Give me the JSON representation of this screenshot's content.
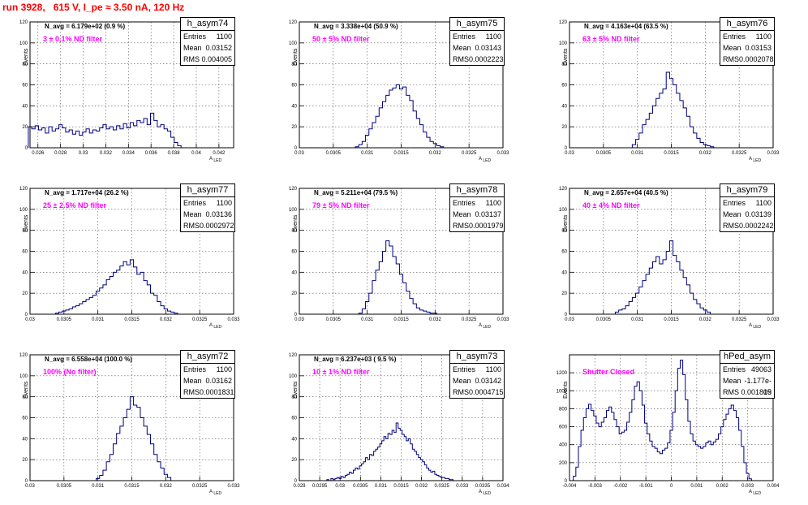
{
  "run_title": "run 3928,   615 V, I_pe ≈ 3.50 nA, 120 Hz",
  "colors": {
    "title": "#ff0000",
    "note": "#ff00ff",
    "hist": "#000080",
    "grid": "#555555"
  },
  "axis_y_label": "Events",
  "axis_x_label": "A",
  "axis_x_label_sub": "LED",
  "stat_labels": {
    "entries": "Entries",
    "mean": "Mean",
    "rms": "RMS"
  },
  "panels": [
    {
      "name": "h_asym74",
      "n_avg": "N_avg = 6.179e+02 (0.9 %)",
      "note": "3 ± 0.1% ND filter",
      "entries": "1100",
      "mean": "0.03152",
      "rms": "0.004005"
    },
    {
      "name": "h_asym75",
      "n_avg": "N_avg = 3.338e+04 (50.9 %)",
      "note": "50 ± 5% ND filter",
      "entries": "1100",
      "mean": "0.03143",
      "rms": "0.0002223"
    },
    {
      "name": "h_asym76",
      "n_avg": "N_avg = 4.163e+04 (63.5 %)",
      "note": "63 ± 5% ND filter",
      "entries": "1100",
      "mean": "0.03153",
      "rms": "0.0002078"
    },
    {
      "name": "h_asym77",
      "n_avg": "N_avg = 1.717e+04 (26.2 %)",
      "note": "25 ± 2.5% ND filter",
      "entries": "1100",
      "mean": "0.03136",
      "rms": "0.0002972"
    },
    {
      "name": "h_asym78",
      "n_avg": "N_avg = 5.211e+04 (79.5 %)",
      "note": "79 ± 5% ND filter",
      "entries": "1100",
      "mean": "0.03137",
      "rms": "0.0001979"
    },
    {
      "name": "h_asym79",
      "n_avg": "N_avg = 2.657e+04 (40.5 %)",
      "note": "40 ± 4% ND filter",
      "entries": "1100",
      "mean": "0.03139",
      "rms": "0.0002242"
    },
    {
      "name": "h_asym72",
      "n_avg": "N_avg = 6.558e+04 (100.0 %)",
      "note": "100% (No filter)",
      "entries": "1100",
      "mean": "0.03162",
      "rms": "0.0001831"
    },
    {
      "name": "h_asym73",
      "n_avg": "N_avg = 6.237e+03 ( 9.5 %)",
      "note": "10 ± 1% ND filter",
      "entries": "1100",
      "mean": "0.03142",
      "rms": "0.0004715"
    },
    {
      "name": "hPed_asym",
      "n_avg": "",
      "note": "Shutter Closed",
      "entries": "49063",
      "mean": "-1.177e-05",
      "rms": "0.001819"
    }
  ],
  "chart_data": [
    {
      "type": "histogram",
      "title": "h_asym74",
      "ylim": [
        0,
        120
      ],
      "xlim": [
        0.0253,
        0.0433
      ],
      "yticks": [
        0,
        20,
        40,
        60,
        80,
        100,
        120
      ],
      "xticks": [
        "0.026",
        "0.028",
        "0.03",
        "0.032",
        "0.034",
        "0.036",
        "0.038",
        "0.04",
        "0.042"
      ],
      "xtick_values": [
        0.026,
        0.028,
        0.03,
        0.032,
        0.034,
        0.036,
        0.038,
        0.04,
        0.042
      ],
      "x": [
        0.0253,
        0.0256,
        0.0259,
        0.0262,
        0.0265,
        0.0268,
        0.0271,
        0.0274,
        0.0277,
        0.028,
        0.0283,
        0.0286,
        0.0289,
        0.0292,
        0.0295,
        0.0298,
        0.0301,
        0.0304,
        0.0307,
        0.031,
        0.0313,
        0.0316,
        0.0319,
        0.0322,
        0.0325,
        0.0328,
        0.0331,
        0.0334,
        0.0337,
        0.034,
        0.0343,
        0.0346,
        0.0349,
        0.0352,
        0.0355,
        0.0358,
        0.0361,
        0.0364,
        0.0367,
        0.037,
        0.0373,
        0.0376,
        0.0379,
        0.0382,
        0.0385,
        0.0388
      ],
      "values": [
        20,
        18,
        21,
        17,
        19,
        14,
        20,
        16,
        18,
        22,
        19,
        15,
        17,
        13,
        16,
        12,
        15,
        18,
        14,
        17,
        16,
        19,
        22,
        18,
        20,
        17,
        21,
        18,
        23,
        19,
        24,
        21,
        26,
        24,
        28,
        22,
        33,
        26,
        20,
        22,
        18,
        16,
        10,
        5,
        2,
        0
      ]
    },
    {
      "type": "histogram",
      "title": "h_asym75",
      "ylim": [
        0,
        120
      ],
      "xlim": [
        0.03,
        0.033
      ],
      "yticks": [
        0,
        20,
        40,
        60,
        80,
        100,
        120
      ],
      "xticks": [
        "0.03",
        "0.0305",
        "0.031",
        "0.0315",
        "0.032",
        "0.0325",
        "0.033"
      ],
      "xtick_values": [
        0.03,
        0.0305,
        0.031,
        0.0315,
        0.032,
        0.0325,
        0.033
      ],
      "x": [
        0.03085,
        0.0309,
        0.03095,
        0.031,
        0.03105,
        0.0311,
        0.03115,
        0.0312,
        0.03125,
        0.0313,
        0.03135,
        0.0314,
        0.03145,
        0.0315,
        0.03155,
        0.0316,
        0.03165,
        0.0317,
        0.03175,
        0.0318,
        0.03185,
        0.0319,
        0.03195,
        0.032,
        0.03205,
        0.0321,
        0.03215
      ],
      "values": [
        1,
        3,
        6,
        12,
        18,
        24,
        30,
        38,
        44,
        50,
        55,
        57,
        60,
        56,
        58,
        50,
        45,
        35,
        28,
        22,
        15,
        10,
        6,
        4,
        2,
        1,
        0
      ]
    },
    {
      "type": "histogram",
      "title": "h_asym76",
      "ylim": [
        0,
        120
      ],
      "xlim": [
        0.03,
        0.033
      ],
      "yticks": [
        0,
        20,
        40,
        60,
        80,
        100,
        120
      ],
      "xticks": [
        "0.03",
        "0.0305",
        "0.031",
        "0.0315",
        "0.032",
        "0.0325",
        "0.033"
      ],
      "xtick_values": [
        0.03,
        0.0305,
        0.031,
        0.0315,
        0.032,
        0.0325,
        0.033
      ],
      "x": [
        0.03095,
        0.031,
        0.03105,
        0.0311,
        0.03115,
        0.0312,
        0.03125,
        0.0313,
        0.03135,
        0.0314,
        0.03145,
        0.0315,
        0.03155,
        0.0316,
        0.03165,
        0.0317,
        0.03175,
        0.0318,
        0.03185,
        0.0319,
        0.03195,
        0.032,
        0.03205,
        0.0321,
        0.03215
      ],
      "values": [
        3,
        8,
        14,
        22,
        27,
        33,
        40,
        47,
        52,
        56,
        72,
        66,
        60,
        52,
        45,
        38,
        30,
        20,
        14,
        9,
        5,
        3,
        2,
        1,
        0
      ]
    },
    {
      "type": "histogram",
      "title": "h_asym77",
      "ylim": [
        0,
        120
      ],
      "xlim": [
        0.03,
        0.033
      ],
      "yticks": [
        0,
        20,
        40,
        60,
        80,
        100,
        120
      ],
      "xticks": [
        "0.03",
        "0.0305",
        "0.031",
        "0.0315",
        "0.032",
        "0.0325",
        "0.033"
      ],
      "xtick_values": [
        0.03,
        0.0305,
        0.031,
        0.0315,
        0.032,
        0.0325,
        0.033
      ],
      "x": [
        0.0304,
        0.03045,
        0.0305,
        0.03055,
        0.0306,
        0.03065,
        0.0307,
        0.03075,
        0.0308,
        0.03085,
        0.0309,
        0.03095,
        0.031,
        0.03105,
        0.0311,
        0.03115,
        0.0312,
        0.03125,
        0.0313,
        0.03135,
        0.0314,
        0.03145,
        0.0315,
        0.03155,
        0.0316,
        0.03165,
        0.0317,
        0.03175,
        0.0318,
        0.03185,
        0.0319,
        0.03195,
        0.032,
        0.03205,
        0.0321,
        0.03215,
        0.0322
      ],
      "values": [
        1,
        2,
        3,
        4,
        5,
        7,
        8,
        10,
        12,
        14,
        16,
        18,
        22,
        25,
        28,
        33,
        36,
        40,
        42,
        46,
        50,
        47,
        52,
        45,
        38,
        40,
        32,
        28,
        20,
        18,
        12,
        8,
        5,
        3,
        2,
        1,
        0
      ]
    },
    {
      "type": "histogram",
      "title": "h_asym78",
      "ylim": [
        0,
        120
      ],
      "xlim": [
        0.03,
        0.033
      ],
      "yticks": [
        0,
        20,
        40,
        60,
        80,
        100,
        120
      ],
      "xticks": [
        "0.03",
        "0.0305",
        "0.031",
        "0.0315",
        "0.032",
        "0.0325",
        "0.033"
      ],
      "xtick_values": [
        0.03,
        0.0305,
        0.031,
        0.0315,
        0.032,
        0.0325,
        0.033
      ],
      "x": [
        0.0309,
        0.03095,
        0.031,
        0.03105,
        0.0311,
        0.03115,
        0.0312,
        0.03125,
        0.0313,
        0.03135,
        0.0314,
        0.03145,
        0.0315,
        0.03155,
        0.0316,
        0.03165,
        0.0317,
        0.03175,
        0.0318,
        0.03185,
        0.0319,
        0.03195,
        0.032,
        0.03205
      ],
      "values": [
        1,
        5,
        12,
        20,
        32,
        42,
        50,
        60,
        70,
        65,
        55,
        48,
        38,
        30,
        22,
        15,
        10,
        6,
        4,
        3,
        2,
        1,
        1,
        0
      ]
    },
    {
      "type": "histogram",
      "title": "h_asym79",
      "ylim": [
        0,
        120
      ],
      "xlim": [
        0.03,
        0.033
      ],
      "yticks": [
        0,
        20,
        40,
        60,
        80,
        100,
        120
      ],
      "xticks": [
        "0.03",
        "0.0305",
        "0.031",
        "0.0315",
        "0.032",
        "0.0325",
        "0.033"
      ],
      "xtick_values": [
        0.03,
        0.0305,
        0.031,
        0.0315,
        0.032,
        0.0325,
        0.033
      ],
      "x": [
        0.0307,
        0.03075,
        0.0308,
        0.03085,
        0.0309,
        0.03095,
        0.031,
        0.03105,
        0.0311,
        0.03115,
        0.0312,
        0.03125,
        0.0313,
        0.03135,
        0.0314,
        0.03145,
        0.0315,
        0.03155,
        0.0316,
        0.03165,
        0.0317,
        0.03175,
        0.0318,
        0.03185,
        0.0319,
        0.03195,
        0.032,
        0.03205,
        0.0321
      ],
      "values": [
        2,
        4,
        5,
        8,
        12,
        16,
        20,
        26,
        32,
        38,
        44,
        50,
        55,
        48,
        52,
        60,
        70,
        56,
        50,
        42,
        35,
        28,
        20,
        14,
        10,
        6,
        4,
        2,
        0
      ]
    },
    {
      "type": "histogram",
      "title": "h_asym72",
      "ylim": [
        0,
        120
      ],
      "xlim": [
        0.03,
        0.033
      ],
      "yticks": [
        0,
        20,
        40,
        60,
        80,
        100,
        120
      ],
      "xticks": [
        "0.03",
        "0.0305",
        "0.031",
        "0.0315",
        "0.032",
        "0.0325",
        "0.033"
      ],
      "xtick_values": [
        0.03,
        0.0305,
        0.031,
        0.0315,
        0.032,
        0.0325,
        0.033
      ],
      "x": [
        0.031,
        0.03105,
        0.0311,
        0.03115,
        0.0312,
        0.03125,
        0.0313,
        0.03135,
        0.0314,
        0.03145,
        0.0315,
        0.03155,
        0.0316,
        0.03165,
        0.0317,
        0.03175,
        0.0318,
        0.03185,
        0.0319,
        0.03195,
        0.032,
        0.03205,
        0.0321
      ],
      "values": [
        2,
        5,
        10,
        18,
        25,
        35,
        45,
        52,
        60,
        68,
        80,
        72,
        70,
        60,
        52,
        44,
        35,
        25,
        18,
        12,
        6,
        3,
        0
      ]
    },
    {
      "type": "histogram",
      "title": "h_asym73",
      "ylim": [
        0,
        120
      ],
      "xlim": [
        0.029,
        0.034
      ],
      "yticks": [
        0,
        20,
        40,
        60,
        80,
        100,
        120
      ],
      "xticks": [
        "0.029",
        "0.0295",
        "0.03",
        "0.0305",
        "0.031",
        "0.0315",
        "0.032",
        "0.0325",
        "0.033",
        "0.0335",
        "0.034"
      ],
      "xtick_values": [
        0.029,
        0.0295,
        0.03,
        0.0305,
        0.031,
        0.0315,
        0.032,
        0.0325,
        0.033,
        0.0335,
        0.034
      ],
      "x": [
        0.0297,
        0.02975,
        0.0298,
        0.02985,
        0.0299,
        0.02995,
        0.03,
        0.03005,
        0.0301,
        0.03015,
        0.0302,
        0.03025,
        0.0303,
        0.03035,
        0.0304,
        0.03045,
        0.0305,
        0.03055,
        0.0306,
        0.03065,
        0.0307,
        0.03075,
        0.0308,
        0.03085,
        0.0309,
        0.03095,
        0.031,
        0.03105,
        0.0311,
        0.03115,
        0.0312,
        0.03125,
        0.0313,
        0.03135,
        0.0314,
        0.03145,
        0.0315,
        0.03155,
        0.0316,
        0.03165,
        0.0317,
        0.03175,
        0.0318,
        0.03185,
        0.0319,
        0.03195,
        0.032,
        0.03205,
        0.0321,
        0.03215,
        0.0322,
        0.03225,
        0.0323,
        0.03235,
        0.0324,
        0.03245,
        0.0325,
        0.03255,
        0.0326,
        0.03265,
        0.0327,
        0.03275,
        0.0328
      ],
      "values": [
        1,
        0,
        2,
        1,
        2,
        3,
        2,
        4,
        3,
        5,
        6,
        8,
        7,
        10,
        12,
        11,
        14,
        16,
        18,
        22,
        20,
        25,
        24,
        28,
        30,
        32,
        35,
        38,
        42,
        40,
        45,
        44,
        48,
        46,
        55,
        50,
        48,
        44,
        42,
        38,
        40,
        35,
        30,
        28,
        25,
        22,
        20,
        18,
        15,
        12,
        10,
        8,
        9,
        6,
        5,
        4,
        3,
        3,
        2,
        2,
        1,
        1,
        0
      ]
    },
    {
      "type": "histogram",
      "title": "hPed_asym",
      "ylim": [
        0,
        1400
      ],
      "xlim": [
        -0.004,
        0.004
      ],
      "yticks": [
        0,
        200,
        400,
        600,
        800,
        1000,
        1200
      ],
      "xticks": [
        "-0.004",
        "-0.003",
        "-0.002",
        "-0.001",
        "0",
        "0.001",
        "0.002",
        "0.003",
        "0.004"
      ],
      "xtick_values": [
        -0.004,
        -0.003,
        -0.002,
        -0.001,
        0,
        0.001,
        0.002,
        0.003,
        0.004
      ],
      "x": [
        -0.0038,
        -0.0037,
        -0.0036,
        -0.0035,
        -0.0034,
        -0.0033,
        -0.0032,
        -0.0031,
        -0.003,
        -0.0029,
        -0.0028,
        -0.0027,
        -0.0026,
        -0.0025,
        -0.0024,
        -0.0023,
        -0.0022,
        -0.0021,
        -0.002,
        -0.0019,
        -0.0018,
        -0.0017,
        -0.0016,
        -0.0015,
        -0.0014,
        -0.0013,
        -0.0012,
        -0.0011,
        -0.001,
        -0.0009,
        -0.0008,
        -0.0007,
        -0.0006,
        -0.0005,
        -0.0004,
        -0.0003,
        -0.0002,
        -0.0001,
        0,
        0.0001,
        0.0002,
        0.0003,
        0.0004,
        0.0005,
        0.0006,
        0.0007,
        0.0008,
        0.0009,
        0.001,
        0.0011,
        0.0012,
        0.0013,
        0.0014,
        0.0015,
        0.0016,
        0.0017,
        0.0018,
        0.0019,
        0.002,
        0.0021,
        0.0022,
        0.0023,
        0.0024,
        0.0025,
        0.0026,
        0.0027,
        0.0028,
        0.0029,
        0.003,
        0.0031,
        0.0032,
        0.0033,
        0.0034,
        0.0035,
        0.0036
      ],
      "values": [
        50,
        150,
        380,
        560,
        700,
        800,
        850,
        780,
        720,
        640,
        600,
        650,
        700,
        780,
        820,
        760,
        680,
        600,
        520,
        540,
        560,
        650,
        760,
        900,
        1050,
        1100,
        1000,
        840,
        640,
        520,
        440,
        380,
        360,
        320,
        300,
        340,
        360,
        420,
        560,
        760,
        1000,
        1250,
        1340,
        1180,
        900,
        660,
        520,
        440,
        400,
        380,
        360,
        380,
        420,
        440,
        400,
        430,
        460,
        520,
        600,
        680,
        740,
        800,
        840,
        780,
        700,
        560,
        380,
        200,
        80,
        20,
        0,
        0,
        0,
        0,
        0
      ]
    }
  ]
}
